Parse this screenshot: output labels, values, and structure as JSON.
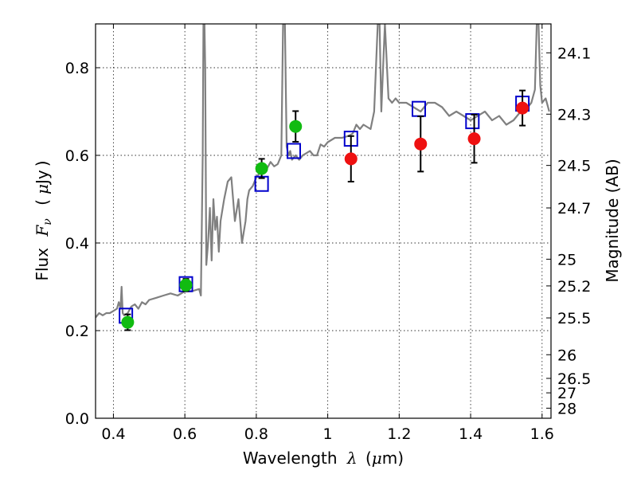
{
  "chart_data": {
    "type": "scatter",
    "xlabel": "Wavelength λ (μm)",
    "ylabel": "Flux F_ν (μJy)",
    "y2label": "Magnitude (AB)",
    "xlim": [
      0.35,
      1.625
    ],
    "ylim": [
      0.0,
      0.9
    ],
    "grid": true,
    "x_ticks": [
      0.4,
      0.6,
      0.8,
      1.0,
      1.2,
      1.4,
      1.6
    ],
    "x_tick_labels": [
      "0.4",
      "0.6",
      "0.8",
      "1",
      "1.2",
      "1.4",
      "1.6"
    ],
    "y_ticks": [
      0.0,
      0.2,
      0.4,
      0.6,
      0.8
    ],
    "y_tick_labels": [
      "0.0",
      "0.2",
      "0.4",
      "0.6",
      "0.8"
    ],
    "mag_ticks": [
      {
        "label": "24.1",
        "flux": 0.834
      },
      {
        "label": "24.3",
        "flux": 0.694
      },
      {
        "label": "24.5",
        "flux": 0.577
      },
      {
        "label": "24.7",
        "flux": 0.48
      },
      {
        "label": "25",
        "flux": 0.363
      },
      {
        "label": "25.2",
        "flux": 0.302
      },
      {
        "label": "25.5",
        "flux": 0.229
      },
      {
        "label": "26",
        "flux": 0.145
      },
      {
        "label": "26.5",
        "flux": 0.091
      },
      {
        "label": "27",
        "flux": 0.058
      },
      {
        "label": "28",
        "flux": 0.023
      }
    ],
    "colors": {
      "model_line": "#808080",
      "model_squares": "#0000cc",
      "green_points": "#11bb11",
      "red_points": "#ee1111",
      "error_bars": "#000000"
    },
    "series": [
      {
        "kind": "line",
        "x": [
          0.35,
          0.36,
          0.37,
          0.38,
          0.39,
          0.4,
          0.41,
          0.415,
          0.42,
          0.423,
          0.426,
          0.43,
          0.44,
          0.45,
          0.46,
          0.47,
          0.48,
          0.49,
          0.5,
          0.52,
          0.54,
          0.56,
          0.58,
          0.6,
          0.62,
          0.64,
          0.645,
          0.65,
          0.652,
          0.655,
          0.657,
          0.66,
          0.665,
          0.67,
          0.675,
          0.68,
          0.685,
          0.69,
          0.695,
          0.7,
          0.71,
          0.72,
          0.73,
          0.74,
          0.75,
          0.76,
          0.77,
          0.775,
          0.78,
          0.79,
          0.8,
          0.81,
          0.82,
          0.83,
          0.84,
          0.85,
          0.86,
          0.87,
          0.875,
          0.88,
          0.885,
          0.89,
          0.895,
          0.9,
          0.91,
          0.92,
          0.93,
          0.94,
          0.95,
          0.96,
          0.97,
          0.98,
          0.99,
          1.0,
          1.02,
          1.04,
          1.06,
          1.07,
          1.08,
          1.09,
          1.1,
          1.12,
          1.13,
          1.14,
          1.145,
          1.15,
          1.155,
          1.16,
          1.17,
          1.18,
          1.19,
          1.2,
          1.22,
          1.24,
          1.26,
          1.28,
          1.3,
          1.32,
          1.34,
          1.36,
          1.38,
          1.4,
          1.42,
          1.44,
          1.46,
          1.48,
          1.5,
          1.52,
          1.54,
          1.56,
          1.57,
          1.58,
          1.585,
          1.59,
          1.595,
          1.6,
          1.61,
          1.62
        ],
        "y": [
          0.23,
          0.24,
          0.235,
          0.24,
          0.24,
          0.245,
          0.25,
          0.265,
          0.25,
          0.3,
          0.24,
          0.235,
          0.24,
          0.255,
          0.26,
          0.25,
          0.265,
          0.26,
          0.27,
          0.275,
          0.28,
          0.285,
          0.28,
          0.29,
          0.29,
          0.295,
          0.28,
          0.6,
          0.9,
          0.9,
          0.8,
          0.35,
          0.4,
          0.48,
          0.36,
          0.5,
          0.43,
          0.46,
          0.38,
          0.45,
          0.5,
          0.54,
          0.55,
          0.45,
          0.5,
          0.4,
          0.45,
          0.5,
          0.52,
          0.53,
          0.55,
          0.56,
          0.58,
          0.57,
          0.585,
          0.575,
          0.58,
          0.6,
          0.9,
          0.9,
          0.62,
          0.6,
          0.61,
          0.59,
          0.6,
          0.59,
          0.6,
          0.605,
          0.61,
          0.6,
          0.6,
          0.625,
          0.62,
          0.63,
          0.64,
          0.64,
          0.645,
          0.65,
          0.67,
          0.66,
          0.67,
          0.66,
          0.7,
          0.9,
          0.9,
          0.7,
          0.8,
          0.9,
          0.73,
          0.72,
          0.73,
          0.72,
          0.72,
          0.71,
          0.7,
          0.72,
          0.72,
          0.71,
          0.69,
          0.7,
          0.69,
          0.68,
          0.69,
          0.7,
          0.68,
          0.69,
          0.67,
          0.68,
          0.7,
          0.71,
          0.72,
          0.75,
          0.9,
          0.9,
          0.76,
          0.72,
          0.73,
          0.7
        ]
      },
      {
        "kind": "squares",
        "x": [
          0.435,
          0.603,
          0.815,
          0.905,
          1.065,
          1.255,
          1.405,
          1.545
        ],
        "y": [
          0.234,
          0.306,
          0.535,
          0.61,
          0.638,
          0.706,
          0.678,
          0.718
        ]
      },
      {
        "kind": "points",
        "color": "green",
        "x": [
          0.44,
          0.603,
          0.815,
          0.91
        ],
        "y": [
          0.219,
          0.304,
          0.57,
          0.666
        ],
        "err": [
          0.018,
          0.014,
          0.022,
          0.035
        ]
      },
      {
        "kind": "points",
        "color": "red",
        "x": [
          1.065,
          1.26,
          1.41,
          1.545
        ],
        "y": [
          0.592,
          0.626,
          0.638,
          0.708
        ],
        "err": [
          0.052,
          0.063,
          0.055,
          0.04
        ]
      }
    ]
  }
}
